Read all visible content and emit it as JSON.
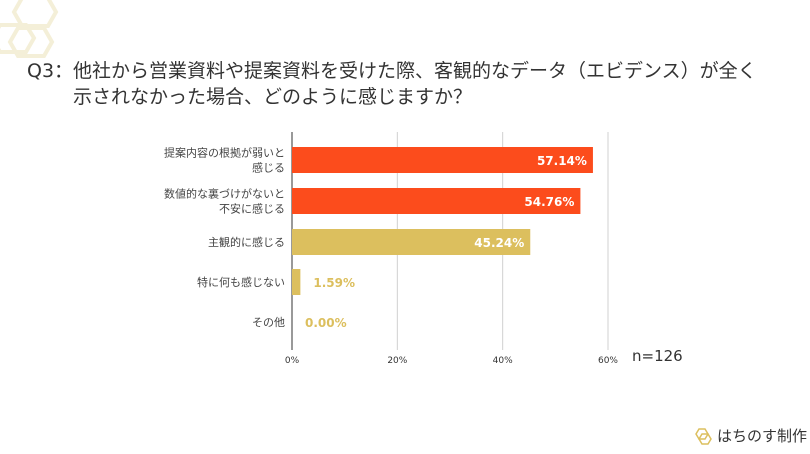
{
  "title": {
    "prefix": "Q3：",
    "line1": "他社から営業資料や提案資料を受けた際、客観的なデータ（エビデンス）が全く",
    "line2": "示されなかった場合、どのように感じますか？"
  },
  "chart_data": {
    "type": "bar",
    "orientation": "horizontal",
    "categories": [
      [
        "提案内容の根拠が弱いと",
        "感じる"
      ],
      [
        "数値的な裏づけがないと",
        "不安に感じる"
      ],
      [
        "主観的に感じる"
      ],
      [
        "特に何も感じない"
      ],
      [
        "その他"
      ]
    ],
    "values": [
      57.14,
      54.76,
      45.24,
      1.59,
      0.0
    ],
    "data_labels": [
      "57.14%",
      "54.76%",
      "45.24%",
      "1.59%",
      "0.00%"
    ],
    "colors": [
      "#fc4c1c",
      "#fc4c1c",
      "#dcbf5e",
      "#dcbf5e",
      "#dcbf5e"
    ],
    "xlim": [
      0,
      60
    ],
    "xticks": [
      "0%",
      "20%",
      "40%",
      "60%"
    ],
    "grid": true
  },
  "sample_size": "n=126",
  "brand": "はちのす制作",
  "colors": {
    "accent": "#fc4c1c",
    "secondary": "#dcbf5e",
    "deco": "#f4efd8"
  }
}
